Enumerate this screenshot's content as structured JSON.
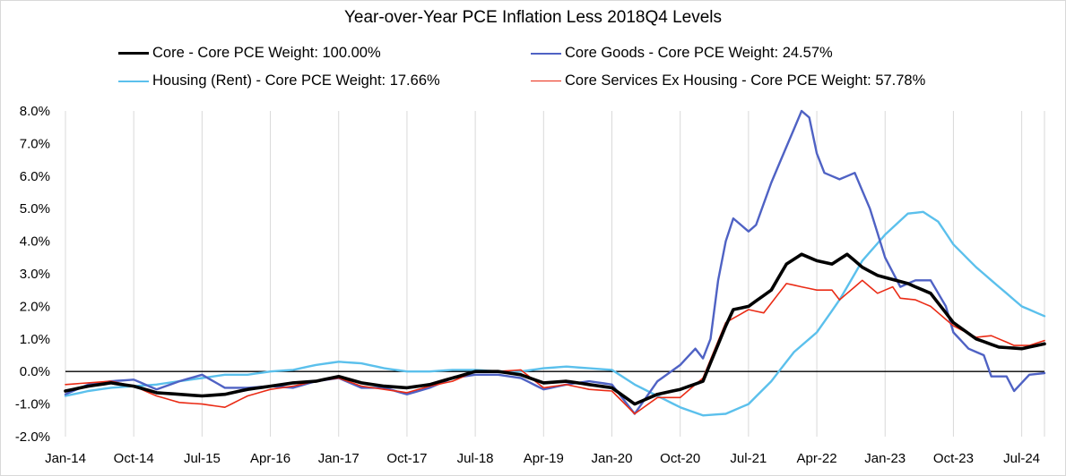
{
  "chart_data": {
    "type": "line",
    "title": "Year-over-Year PCE Inflation Less 2018Q4 Levels",
    "xlabel": "",
    "ylabel": "",
    "y_unit": "percent",
    "ylim": [
      -2.0,
      8.0
    ],
    "y_ticks": [
      "-2.0%",
      "-1.0%",
      "0.0%",
      "1.0%",
      "2.0%",
      "3.0%",
      "4.0%",
      "5.0%",
      "6.0%",
      "7.0%",
      "8.0%"
    ],
    "x_ticks": [
      "Jan-14",
      "Oct-14",
      "Jul-15",
      "Apr-16",
      "Jan-17",
      "Oct-17",
      "Jul-18",
      "Apr-19",
      "Jan-20",
      "Oct-20",
      "Jul-21",
      "Apr-22",
      "Jan-23",
      "Oct-23",
      "Jul-24"
    ],
    "x_start": "Jan-14",
    "x_end": "Oct-24",
    "frequency": "monthly",
    "grid": "vertical",
    "legend_position": "top",
    "series": [
      {
        "name": "Core - Core PCE Weight: 100.00%",
        "color": "#000000",
        "anchors": [
          [
            "Jan-14",
            -0.6
          ],
          [
            "Apr-14",
            -0.45
          ],
          [
            "Jul-14",
            -0.35
          ],
          [
            "Oct-14",
            -0.45
          ],
          [
            "Jan-15",
            -0.65
          ],
          [
            "Apr-15",
            -0.7
          ],
          [
            "Jul-15",
            -0.75
          ],
          [
            "Oct-15",
            -0.7
          ],
          [
            "Jan-16",
            -0.55
          ],
          [
            "Apr-16",
            -0.45
          ],
          [
            "Jul-16",
            -0.35
          ],
          [
            "Oct-16",
            -0.3
          ],
          [
            "Jan-17",
            -0.15
          ],
          [
            "Apr-17",
            -0.35
          ],
          [
            "Jul-17",
            -0.45
          ],
          [
            "Oct-17",
            -0.5
          ],
          [
            "Jan-18",
            -0.4
          ],
          [
            "Apr-18",
            -0.2
          ],
          [
            "Jul-18",
            0.0
          ],
          [
            "Oct-18",
            0.0
          ],
          [
            "Jan-19",
            -0.1
          ],
          [
            "Apr-19",
            -0.35
          ],
          [
            "Jul-19",
            -0.3
          ],
          [
            "Oct-19",
            -0.4
          ],
          [
            "Jan-20",
            -0.5
          ],
          [
            "Apr-20",
            -1.0
          ],
          [
            "Jul-20",
            -0.7
          ],
          [
            "Oct-20",
            -0.55
          ],
          [
            "Jan-21",
            -0.3
          ],
          [
            "Apr-21",
            1.4
          ],
          [
            "May-21",
            1.9
          ],
          [
            "Jul-21",
            2.0
          ],
          [
            "Oct-21",
            2.5
          ],
          [
            "Dec-21",
            3.3
          ],
          [
            "Feb-22",
            3.6
          ],
          [
            "Apr-22",
            3.4
          ],
          [
            "Jun-22",
            3.3
          ],
          [
            "Aug-22",
            3.6
          ],
          [
            "Oct-22",
            3.2
          ],
          [
            "Dec-22",
            2.95
          ],
          [
            "Apr-23",
            2.7
          ],
          [
            "Jul-23",
            2.4
          ],
          [
            "Oct-23",
            1.5
          ],
          [
            "Jan-24",
            1.0
          ],
          [
            "Apr-24",
            0.75
          ],
          [
            "Jul-24",
            0.7
          ],
          [
            "Oct-24",
            0.85
          ]
        ]
      },
      {
        "name": "Core Goods - Core PCE Weight: 24.57%",
        "color": "#4f62c4",
        "anchors": [
          [
            "Jan-14",
            -0.7
          ],
          [
            "Apr-14",
            -0.4
          ],
          [
            "Jul-14",
            -0.3
          ],
          [
            "Oct-14",
            -0.25
          ],
          [
            "Jan-15",
            -0.55
          ],
          [
            "Apr-15",
            -0.3
          ],
          [
            "Jul-15",
            -0.1
          ],
          [
            "Oct-15",
            -0.5
          ],
          [
            "Jan-16",
            -0.5
          ],
          [
            "Apr-16",
            -0.45
          ],
          [
            "Jul-16",
            -0.5
          ],
          [
            "Oct-16",
            -0.3
          ],
          [
            "Jan-17",
            -0.2
          ],
          [
            "Apr-17",
            -0.5
          ],
          [
            "Jul-17",
            -0.5
          ],
          [
            "Oct-17",
            -0.7
          ],
          [
            "Jan-18",
            -0.5
          ],
          [
            "Apr-18",
            -0.2
          ],
          [
            "Jul-18",
            -0.1
          ],
          [
            "Oct-18",
            -0.1
          ],
          [
            "Jan-19",
            -0.2
          ],
          [
            "Apr-19",
            -0.55
          ],
          [
            "Jul-19",
            -0.4
          ],
          [
            "Oct-19",
            -0.3
          ],
          [
            "Jan-20",
            -0.4
          ],
          [
            "Apr-20",
            -1.3
          ],
          [
            "Jul-20",
            -0.3
          ],
          [
            "Oct-20",
            0.2
          ],
          [
            "Dec-20",
            0.7
          ],
          [
            "Jan-21",
            0.4
          ],
          [
            "Feb-21",
            1.0
          ],
          [
            "Mar-21",
            2.8
          ],
          [
            "Apr-21",
            4.0
          ],
          [
            "May-21",
            4.7
          ],
          [
            "Jul-21",
            4.3
          ],
          [
            "Aug-21",
            4.5
          ],
          [
            "Oct-21",
            5.8
          ],
          [
            "Dec-21",
            6.9
          ],
          [
            "Feb-22",
            8.0
          ],
          [
            "Mar-22",
            7.8
          ],
          [
            "Apr-22",
            6.7
          ],
          [
            "May-22",
            6.1
          ],
          [
            "Jul-22",
            5.9
          ],
          [
            "Aug-22",
            6.0
          ],
          [
            "Sep-22",
            6.1
          ],
          [
            "Nov-22",
            5.0
          ],
          [
            "Jan-23",
            3.5
          ],
          [
            "Mar-23",
            2.6
          ],
          [
            "May-23",
            2.8
          ],
          [
            "Jul-23",
            2.8
          ],
          [
            "Sep-23",
            2.0
          ],
          [
            "Oct-23",
            1.2
          ],
          [
            "Dec-23",
            0.7
          ],
          [
            "Feb-24",
            0.5
          ],
          [
            "Mar-24",
            -0.15
          ],
          [
            "May-24",
            -0.15
          ],
          [
            "Jun-24",
            -0.6
          ],
          [
            "Aug-24",
            -0.1
          ],
          [
            "Oct-24",
            -0.05
          ]
        ]
      },
      {
        "name": "Housing (Rent) - Core PCE Weight: 17.66%",
        "color": "#5bc0ec",
        "anchors": [
          [
            "Jan-14",
            -0.75
          ],
          [
            "Apr-14",
            -0.6
          ],
          [
            "Jul-14",
            -0.5
          ],
          [
            "Oct-14",
            -0.45
          ],
          [
            "Jan-15",
            -0.4
          ],
          [
            "Apr-15",
            -0.3
          ],
          [
            "Jul-15",
            -0.2
          ],
          [
            "Oct-15",
            -0.1
          ],
          [
            "Jan-16",
            -0.1
          ],
          [
            "Apr-16",
            0.0
          ],
          [
            "Jul-16",
            0.05
          ],
          [
            "Oct-16",
            0.2
          ],
          [
            "Jan-17",
            0.3
          ],
          [
            "Apr-17",
            0.25
          ],
          [
            "Jul-17",
            0.1
          ],
          [
            "Oct-17",
            0.0
          ],
          [
            "Jan-18",
            0.0
          ],
          [
            "Apr-18",
            0.05
          ],
          [
            "Jul-18",
            0.05
          ],
          [
            "Oct-18",
            0.0
          ],
          [
            "Jan-19",
            0.0
          ],
          [
            "Apr-19",
            0.1
          ],
          [
            "Jul-19",
            0.15
          ],
          [
            "Oct-19",
            0.1
          ],
          [
            "Jan-20",
            0.05
          ],
          [
            "Apr-20",
            -0.4
          ],
          [
            "Jul-20",
            -0.75
          ],
          [
            "Oct-20",
            -1.1
          ],
          [
            "Jan-21",
            -1.35
          ],
          [
            "Apr-21",
            -1.3
          ],
          [
            "Jul-21",
            -1.0
          ],
          [
            "Oct-21",
            -0.3
          ],
          [
            "Jan-22",
            0.6
          ],
          [
            "Apr-22",
            1.2
          ],
          [
            "Jul-22",
            2.2
          ],
          [
            "Oct-22",
            3.4
          ],
          [
            "Jan-23",
            4.2
          ],
          [
            "Apr-23",
            4.85
          ],
          [
            "Jun-23",
            4.9
          ],
          [
            "Aug-23",
            4.6
          ],
          [
            "Oct-23",
            3.9
          ],
          [
            "Jan-24",
            3.2
          ],
          [
            "Apr-24",
            2.6
          ],
          [
            "Jul-24",
            2.0
          ],
          [
            "Aug-24",
            1.9
          ],
          [
            "Oct-24",
            1.7
          ]
        ]
      },
      {
        "name": "Core Services Ex Housing - Core PCE Weight: 57.78%",
        "color": "#ea2b15",
        "anchors": [
          [
            "Jan-14",
            -0.4
          ],
          [
            "Apr-14",
            -0.35
          ],
          [
            "Jul-14",
            -0.3
          ],
          [
            "Oct-14",
            -0.45
          ],
          [
            "Jan-15",
            -0.75
          ],
          [
            "Apr-15",
            -0.95
          ],
          [
            "Jul-15",
            -1.0
          ],
          [
            "Oct-15",
            -1.1
          ],
          [
            "Jan-16",
            -0.75
          ],
          [
            "Apr-16",
            -0.55
          ],
          [
            "Jul-16",
            -0.45
          ],
          [
            "Oct-16",
            -0.3
          ],
          [
            "Jan-17",
            -0.2
          ],
          [
            "Apr-17",
            -0.45
          ],
          [
            "Jul-17",
            -0.55
          ],
          [
            "Oct-17",
            -0.65
          ],
          [
            "Jan-18",
            -0.45
          ],
          [
            "Apr-18",
            -0.3
          ],
          [
            "Jul-18",
            0.0
          ],
          [
            "Oct-18",
            0.0
          ],
          [
            "Jan-19",
            0.05
          ],
          [
            "Apr-19",
            -0.5
          ],
          [
            "Jul-19",
            -0.4
          ],
          [
            "Oct-19",
            -0.55
          ],
          [
            "Jan-20",
            -0.6
          ],
          [
            "Apr-20",
            -1.3
          ],
          [
            "Jul-20",
            -0.8
          ],
          [
            "Oct-20",
            -0.8
          ],
          [
            "Jan-21",
            -0.2
          ],
          [
            "Apr-21",
            1.5
          ],
          [
            "Jul-21",
            1.9
          ],
          [
            "Sep-21",
            1.8
          ],
          [
            "Nov-21",
            2.4
          ],
          [
            "Dec-21",
            2.7
          ],
          [
            "Apr-22",
            2.5
          ],
          [
            "Jun-22",
            2.5
          ],
          [
            "Jul-22",
            2.2
          ],
          [
            "Sep-22",
            2.6
          ],
          [
            "Oct-22",
            2.8
          ],
          [
            "Dec-22",
            2.4
          ],
          [
            "Feb-23",
            2.6
          ],
          [
            "Mar-23",
            2.25
          ],
          [
            "May-23",
            2.2
          ],
          [
            "Jul-23",
            2.0
          ],
          [
            "Oct-23",
            1.4
          ],
          [
            "Jan-24",
            1.05
          ],
          [
            "Mar-24",
            1.1
          ],
          [
            "Jun-24",
            0.8
          ],
          [
            "Aug-24",
            0.8
          ],
          [
            "Oct-24",
            0.95
          ]
        ]
      }
    ]
  }
}
